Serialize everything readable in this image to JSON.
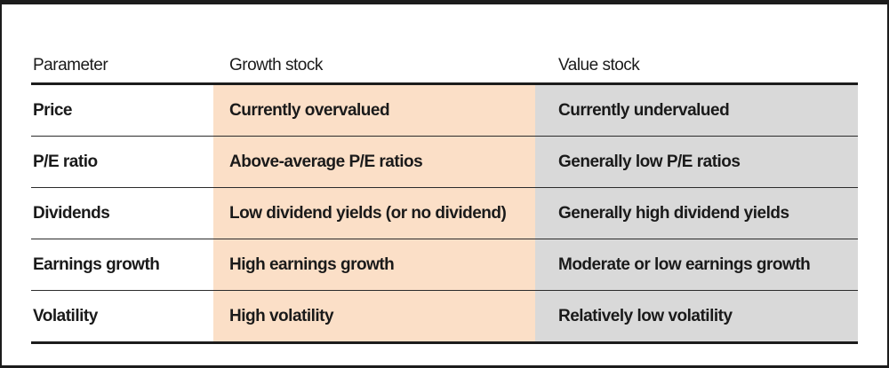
{
  "colors": {
    "growth_bg": "#fbdfc7",
    "value_bg": "#d9d9d9",
    "rule": "#1c1c1c",
    "text": "#1a1a1a"
  },
  "table": {
    "columns": [
      {
        "label": "Parameter"
      },
      {
        "label": "Growth stock"
      },
      {
        "label": "Value stock"
      }
    ],
    "rows": [
      {
        "parameter": "Price",
        "growth": "Currently overvalued",
        "value": "Currently undervalued"
      },
      {
        "parameter": "P/E ratio",
        "growth": "Above-average P/E ratios",
        "value": "Generally low P/E ratios"
      },
      {
        "parameter": "Dividends",
        "growth": "Low dividend yields (or no dividend)",
        "value": "Generally high dividend yields"
      },
      {
        "parameter": "Earnings growth",
        "growth": "High earnings growth",
        "value": "Moderate or low earnings growth"
      },
      {
        "parameter": "Volatility",
        "growth": "High volatility",
        "value": "Relatively low volatility"
      }
    ]
  }
}
